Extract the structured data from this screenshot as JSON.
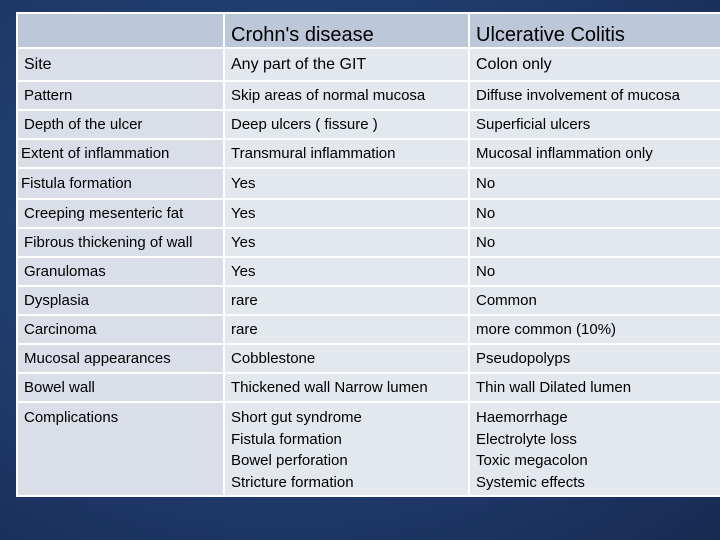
{
  "table": {
    "headers": [
      "",
      "Crohn's disease",
      "Ulcerative Colitis"
    ],
    "rows": [
      [
        "Site",
        "Any  part of the GIT",
        "Colon only"
      ],
      [
        "Pattern",
        "Skip  areas of normal mucosa",
        " Diffuse involvement of mucosa"
      ],
      [
        "Depth of the ulcer",
        "Deep ulcers ( fissure )",
        "Superficial ulcers"
      ],
      [
        "Extent of inflammation",
        "Transmural  inflammation",
        "Mucosal inflammation only"
      ],
      [
        "Fistula  formation",
        "Yes",
        "No"
      ],
      [
        "Creeping mesenteric fat",
        "Yes",
        "No"
      ],
      [
        "Fibrous thickening of wall",
        "Yes",
        "No"
      ],
      [
        "Granulomas",
        "Yes",
        "No"
      ],
      [
        "Dysplasia",
        "rare",
        "Common"
      ],
      [
        "Carcinoma",
        "rare",
        "more common (10%)"
      ],
      [
        "Mucosal appearances",
        "Cobblestone",
        "Pseudopolyps"
      ],
      [
        "Bowel wall",
        "Thickened wall Narrow lumen",
        "Thin wall Dilated lumen"
      ]
    ],
    "complications": {
      "label": "Complications",
      "crohns": [
        "Short gut syndrome",
        "Fistula formation",
        "Bowel perforation",
        "Stricture formation"
      ],
      "uc": [
        "Haemorrhage",
        "Electrolyte loss",
        "Toxic megacolon",
        "Systemic effects"
      ]
    }
  },
  "colors": {
    "background": "#1f3a6b",
    "header_fill": "#bcc7d9",
    "cell_fill": "#e3e8ef",
    "border": "#ffffff"
  }
}
